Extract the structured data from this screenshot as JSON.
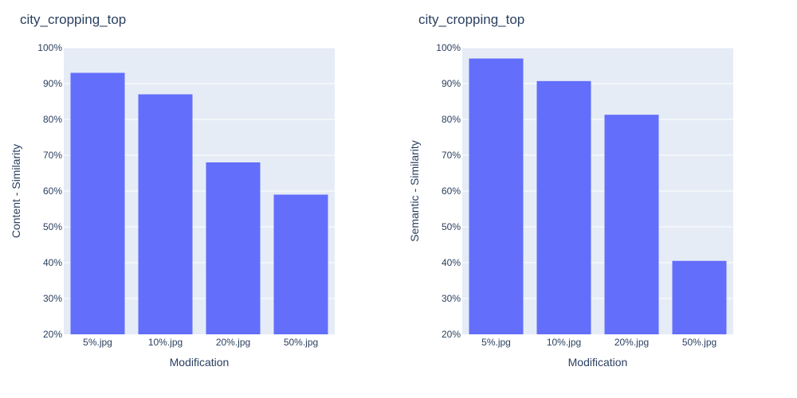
{
  "charts": [
    {
      "title": "city_cropping_top",
      "xlabel": "Modification",
      "ylabel": "Content - Similarity"
    },
    {
      "title": "city_cropping_top",
      "xlabel": "Modification",
      "ylabel": "Semantic - Similarity"
    }
  ],
  "colors": {
    "bar": "#636efa",
    "plot_bg": "#e5ecf6",
    "grid": "#ffffff",
    "text": "#2a3f5f"
  },
  "chart_data": [
    {
      "type": "bar",
      "title": "city_cropping_top",
      "xlabel": "Modification",
      "ylabel": "Content - Similarity",
      "categories": [
        "5%.jpg",
        "10%.jpg",
        "20%.jpg",
        "50%.jpg"
      ],
      "values": [
        93,
        87,
        68,
        59
      ],
      "ylim": [
        20,
        100
      ],
      "yticks": [
        20,
        30,
        40,
        50,
        60,
        70,
        80,
        90,
        100
      ],
      "ytick_labels": [
        "20%",
        "30%",
        "40%",
        "50%",
        "60%",
        "70%",
        "80%",
        "90%",
        "100%"
      ],
      "grid": true
    },
    {
      "type": "bar",
      "title": "city_cropping_top",
      "xlabel": "Modification",
      "ylabel": "Semantic - Similarity",
      "categories": [
        "5%.jpg",
        "10%.jpg",
        "20%.jpg",
        "50%.jpg"
      ],
      "values": [
        97,
        90.7,
        81.3,
        40.5
      ],
      "ylim": [
        20,
        100
      ],
      "yticks": [
        20,
        30,
        40,
        50,
        60,
        70,
        80,
        90,
        100
      ],
      "ytick_labels": [
        "20%",
        "30%",
        "40%",
        "50%",
        "60%",
        "70%",
        "80%",
        "90%",
        "100%"
      ],
      "grid": true
    }
  ]
}
